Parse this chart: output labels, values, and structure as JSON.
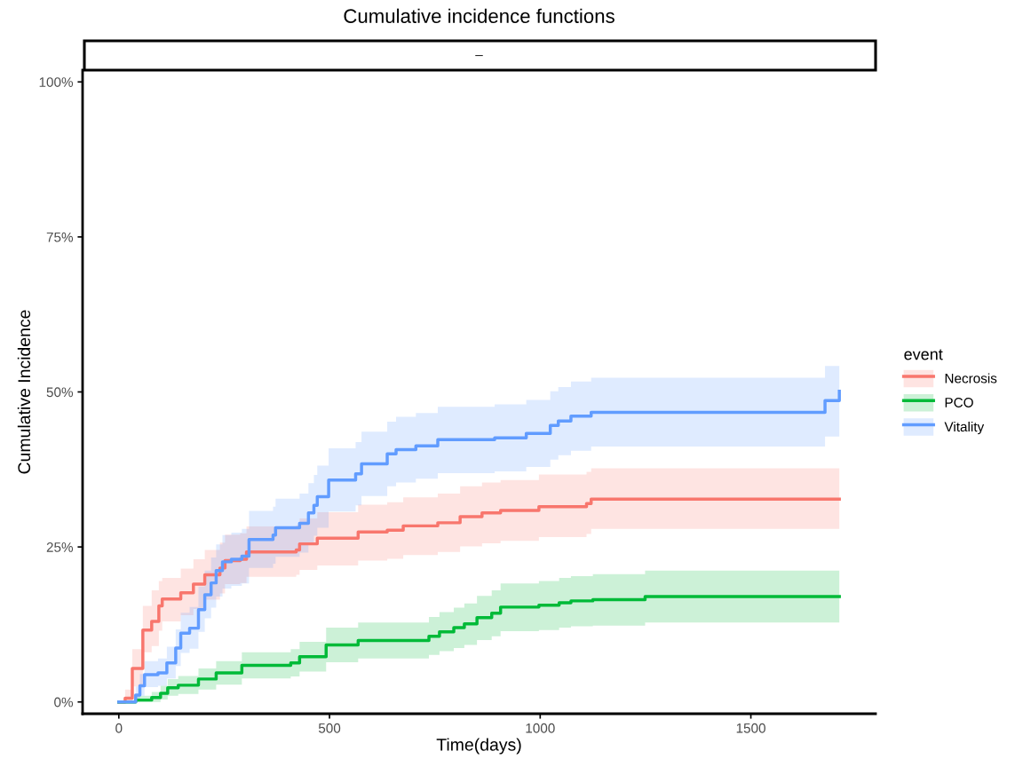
{
  "chart_data": {
    "type": "step",
    "title": "Cumulative incidence functions",
    "subtitle": "–",
    "xlabel": "Time(days)",
    "ylabel": "Cumulative Incidence",
    "legend_title": "event",
    "legend": "right",
    "grid": false,
    "xlim": [
      -86,
      1796
    ],
    "xticks": [
      0,
      500,
      1000,
      1500
    ],
    "ylim": [
      -1.9,
      101.9
    ],
    "yticks": [
      {
        "value": 0,
        "label": "0%"
      },
      {
        "value": 25,
        "label": "25%"
      },
      {
        "value": 50,
        "label": "50%"
      },
      {
        "value": 75,
        "label": "75%"
      },
      {
        "value": 100,
        "label": "100%"
      }
    ],
    "series": [
      {
        "name": "Necrosis",
        "color": "#f8766d",
        "x": [
          0,
          4,
          15,
          32,
          57,
          78,
          95,
          103,
          147,
          177,
          204,
          240,
          252,
          288,
          303,
          421,
          429,
          471,
          568,
          637,
          675,
          757,
          810,
          862,
          906,
          997,
          1110,
          1121,
          1710
        ],
        "values": [
          0,
          0,
          0.6,
          5.4,
          11.6,
          13,
          15.5,
          16.6,
          17.6,
          19,
          20.5,
          21.6,
          22.8,
          23,
          24.2,
          24.5,
          25.5,
          26.4,
          27.4,
          27.7,
          28.4,
          28.9,
          29.9,
          30.5,
          30.9,
          31.5,
          32,
          32.7,
          32.7
        ],
        "lower": [
          0,
          0,
          0,
          2.5,
          8,
          9,
          11.5,
          13,
          14,
          15,
          16.5,
          17.5,
          19,
          19.2,
          20.2,
          20.5,
          21.3,
          22,
          22.8,
          23.1,
          23.7,
          24.2,
          25.1,
          25.6,
          26,
          26.6,
          27.1,
          27.9,
          27.9
        ],
        "upper": [
          0,
          0,
          2,
          8.5,
          15.5,
          18,
          19.5,
          20,
          21.5,
          23,
          24.5,
          25.7,
          27,
          27.2,
          28.3,
          28.5,
          29.6,
          30.6,
          31.8,
          32.2,
          33,
          33.6,
          34.8,
          35.4,
          35.8,
          36.7,
          37.1,
          37.7,
          37.7
        ]
      },
      {
        "name": "PCO",
        "color": "#00ba38",
        "x": [
          0,
          21,
          40,
          78,
          99,
          116,
          141,
          189,
          231,
          292,
          408,
          429,
          492,
          568,
          736,
          761,
          795,
          820,
          850,
          885,
          906,
          997,
          1045,
          1073,
          1125,
          1249,
          1710
        ],
        "values": [
          0,
          0,
          0.3,
          0.7,
          1.4,
          2.3,
          2.7,
          3.7,
          4.7,
          5.9,
          6.3,
          7.3,
          9.2,
          9.9,
          10.6,
          11.3,
          12,
          12.6,
          13.6,
          14.3,
          15.3,
          15.6,
          16,
          16.3,
          16.5,
          17,
          17
        ],
        "lower": [
          0,
          0,
          0,
          0,
          0.4,
          1,
          1.3,
          2,
          2.8,
          3.8,
          4.1,
          4.9,
          6.4,
          7,
          7.6,
          8.2,
          8.7,
          9.2,
          10,
          10.6,
          11.4,
          11.6,
          12,
          12.2,
          12.3,
          12.8,
          12.8
        ],
        "upper": [
          0,
          0,
          1,
          1.6,
          2.6,
          3.7,
          4.2,
          5.4,
          6.6,
          8,
          8.5,
          9.7,
          12,
          12.8,
          13.7,
          14.5,
          15.2,
          15.9,
          17.1,
          18,
          19.1,
          19.5,
          20,
          20.3,
          20.6,
          21.2,
          21.2
        ]
      },
      {
        "name": "Vitality",
        "color": "#619cff",
        "x": [
          0,
          40,
          50,
          61,
          93,
          114,
          135,
          147,
          168,
          189,
          204,
          219,
          231,
          246,
          267,
          292,
          309,
          366,
          372,
          429,
          450,
          463,
          471,
          498,
          562,
          576,
          637,
          658,
          705,
          757,
          892,
          967,
          1024,
          1043,
          1073,
          1121,
          1676,
          1710
        ],
        "values": [
          0,
          1.1,
          2.6,
          4.4,
          4.7,
          6.3,
          8.7,
          11.1,
          11.9,
          14.9,
          17.3,
          19.2,
          21.2,
          22.6,
          23,
          23.5,
          26.2,
          26.9,
          28.1,
          28.8,
          30.5,
          31.7,
          33.1,
          35.8,
          36.8,
          38.4,
          40,
          40.7,
          41.3,
          42.3,
          42.6,
          43.3,
          44.6,
          45.3,
          46.1,
          46.7,
          48.6,
          50.1
        ],
        "lower": [
          0,
          0,
          1,
          2.4,
          2.6,
          3.8,
          5.8,
          7.9,
          8.6,
          11.3,
          13.5,
          15.2,
          17,
          18.3,
          18.7,
          19.1,
          21.6,
          22.3,
          23.4,
          24.1,
          25.7,
          26.8,
          28.1,
          30.7,
          31.7,
          33.2,
          34.8,
          35.4,
          36,
          36.9,
          37.2,
          37.9,
          39.1,
          39.8,
          40.5,
          41.2,
          42.8,
          43.5
        ],
        "upper": [
          0,
          2.5,
          4.5,
          6.6,
          7,
          8.9,
          11.7,
          14.4,
          15.3,
          18.6,
          21.2,
          23.3,
          25.4,
          26.9,
          27.3,
          27.9,
          30.8,
          31.5,
          32.8,
          33.6,
          35.3,
          36.6,
          38.1,
          40.9,
          41.9,
          43.6,
          45.2,
          46,
          46.6,
          47.6,
          48,
          48.7,
          50.1,
          50.8,
          51.7,
          52.3,
          54.2,
          54.2
        ]
      }
    ]
  }
}
